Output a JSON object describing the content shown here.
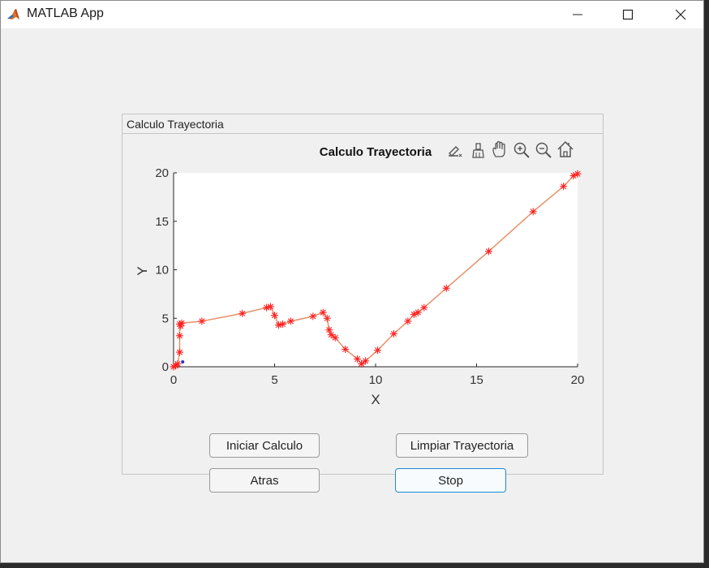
{
  "window": {
    "title": "MATLAB App",
    "controls": {
      "minimize": "minimize-icon",
      "maximize": "maximize-icon",
      "close": "close-icon"
    }
  },
  "panel": {
    "title": "Calculo Trayectoria"
  },
  "axes": {
    "title": "Calculo Trayectoria",
    "toolbar": [
      "brush-edit-icon",
      "data-brush-icon",
      "pan-hand-icon",
      "zoom-in-icon",
      "zoom-out-icon",
      "home-icon"
    ]
  },
  "chart_data": {
    "type": "line",
    "title": "Calculo Trayectoria",
    "xlabel": "X",
    "ylabel": "Y",
    "xlim": [
      0,
      20
    ],
    "ylim": [
      0,
      20
    ],
    "xticks": [
      0,
      5,
      10,
      15,
      20
    ],
    "yticks": [
      0,
      5,
      10,
      15,
      20
    ],
    "grid": false,
    "line_color": "#e8906a",
    "marker_color": "#ff2020",
    "marker": "*",
    "series": [
      {
        "x": [
          0.0,
          0.1,
          0.2,
          0.3,
          0.3,
          0.3,
          0.35,
          0.4,
          1.4,
          3.4,
          4.6,
          4.8,
          5.0,
          5.2,
          5.4,
          5.8,
          6.9,
          7.4,
          7.6,
          7.7,
          7.8,
          8.0,
          8.5,
          9.1,
          9.3,
          9.5,
          10.1,
          10.9,
          11.6,
          11.9,
          12.1,
          12.4,
          13.5,
          15.6,
          17.8,
          19.3,
          19.8,
          20.0
        ],
        "y": [
          0.0,
          0.1,
          0.3,
          1.5,
          3.2,
          4.4,
          4.2,
          4.5,
          4.7,
          5.5,
          6.1,
          6.2,
          5.3,
          4.3,
          4.4,
          4.7,
          5.2,
          5.6,
          5.0,
          3.8,
          3.3,
          3.0,
          1.8,
          0.8,
          0.3,
          0.6,
          1.7,
          3.4,
          4.7,
          5.4,
          5.6,
          6.1,
          8.1,
          11.9,
          16.0,
          18.6,
          19.7,
          19.9
        ]
      }
    ],
    "extra_points": [
      {
        "x": 0.45,
        "y": 0.5,
        "color": "#3030cc"
      }
    ]
  },
  "buttons": {
    "iniciar": "Iniciar Calculo",
    "limpiar": "Limpiar Trayectoria",
    "atras": "Atras",
    "stop": "Stop"
  }
}
